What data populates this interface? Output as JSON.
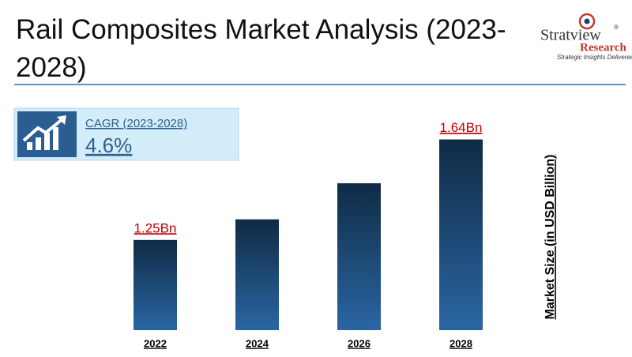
{
  "chart_data": {
    "type": "bar",
    "title": "Rail Composites Market Analysis (2023-2028)",
    "brand": {
      "name": "Stratview",
      "sub": "Research",
      "mark": "®",
      "tagline": "Strategic Insights Delivered"
    },
    "cagr": {
      "label": "CAGR (2023-2028)",
      "value": "4.6%"
    },
    "y_label": "Market Size (in USD Billion)",
    "categories": [
      "2022",
      "2024",
      "2026",
      "2028"
    ],
    "values": [
      1.25,
      1.33,
      1.47,
      1.64
    ],
    "value_labels": [
      "1.25Bn",
      null,
      null,
      "1.64Bn"
    ],
    "ylim": [
      0.9,
      1.7
    ],
    "color": "#2a66a3",
    "label_color": "#c00000"
  }
}
